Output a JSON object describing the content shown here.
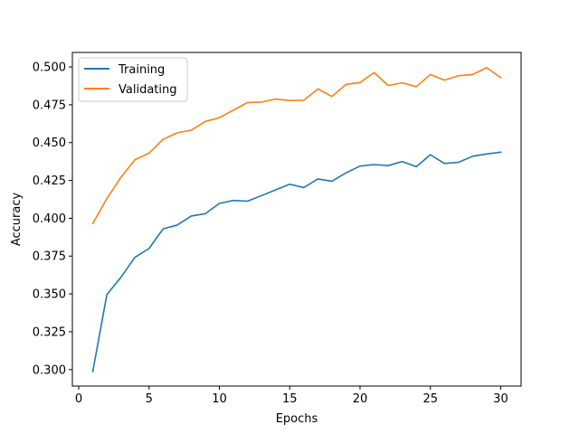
{
  "chart_data": {
    "type": "line",
    "title": "",
    "xlabel": "Epochs",
    "ylabel": "Accuracy",
    "xlim": [
      -0.45,
      31.45
    ],
    "ylim": [
      0.2891,
      0.5096
    ],
    "xticks": [
      0,
      5,
      10,
      15,
      20,
      25,
      30
    ],
    "yticks": [
      0.3,
      0.325,
      0.35,
      0.375,
      0.4,
      0.425,
      0.45,
      0.475,
      0.5
    ],
    "ytick_labels": [
      "0.300",
      "0.325",
      "0.350",
      "0.375",
      "0.400",
      "0.425",
      "0.450",
      "0.475",
      "0.500"
    ],
    "grid": false,
    "legend_position": "top-left",
    "x": [
      1,
      2,
      3,
      4,
      5,
      6,
      7,
      8,
      9,
      10,
      11,
      12,
      13,
      14,
      15,
      16,
      17,
      18,
      19,
      20,
      21,
      22,
      23,
      24,
      25,
      26,
      27,
      28,
      29,
      30
    ],
    "series": [
      {
        "name": "Training",
        "color": "#1f77b4",
        "values": [
          0.2987,
          0.3495,
          0.361,
          0.3742,
          0.38,
          0.393,
          0.3955,
          0.4015,
          0.403,
          0.4098,
          0.4118,
          0.4113,
          0.415,
          0.4188,
          0.4225,
          0.4203,
          0.426,
          0.4245,
          0.43,
          0.4345,
          0.4355,
          0.4348,
          0.4375,
          0.4341,
          0.442,
          0.4362,
          0.437,
          0.441,
          0.4425,
          0.4437
        ]
      },
      {
        "name": "Validating",
        "color": "#ff7f0e",
        "values": [
          0.3965,
          0.413,
          0.427,
          0.4388,
          0.443,
          0.4522,
          0.4565,
          0.4582,
          0.464,
          0.4665,
          0.4715,
          0.4765,
          0.4768,
          0.4788,
          0.4778,
          0.478,
          0.4855,
          0.4805,
          0.4885,
          0.4897,
          0.4963,
          0.4878,
          0.4895,
          0.487,
          0.495,
          0.4913,
          0.4942,
          0.495,
          0.4995,
          0.493
        ]
      }
    ]
  }
}
